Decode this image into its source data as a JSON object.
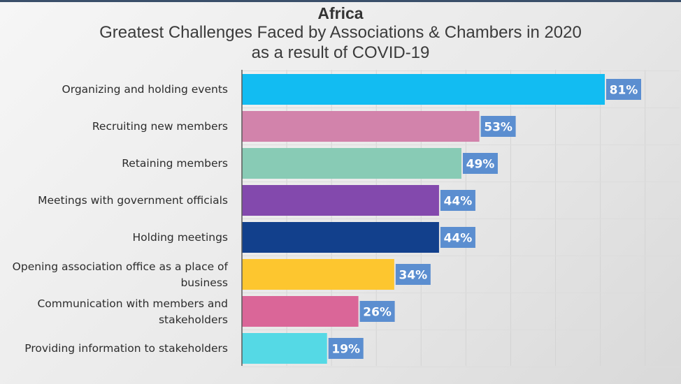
{
  "chart_data": {
    "type": "bar",
    "orientation": "horizontal",
    "title": "Africa",
    "subtitle": "Greatest Challenges Faced by Associations & Chambers in 2020 as a result of COVID-19",
    "subtitle_lines": [
      "Greatest Challenges Faced by Associations & Chambers in 2020",
      "as a result of COVID-19"
    ],
    "categories": [
      "Organizing and holding events",
      "Recruiting new members",
      "Retaining members",
      "Meetings with government officials",
      "Holding meetings",
      "Opening association office as a place of business",
      "Communication with members and stakeholders",
      "Providing information to stakeholders"
    ],
    "category_lines": [
      [
        "Organizing and holding events"
      ],
      [
        "Recruiting new members"
      ],
      [
        "Retaining members"
      ],
      [
        "Meetings with government officials"
      ],
      [
        "Holding meetings"
      ],
      [
        "Opening association office as a place of",
        "business"
      ],
      [
        "Communication with members and",
        "stakeholders"
      ],
      [
        "Providing information to stakeholders"
      ]
    ],
    "values": [
      81,
      53,
      49,
      44,
      44,
      34,
      26,
      19
    ],
    "data_labels": [
      "81%",
      "53%",
      "49%",
      "44%",
      "44%",
      "34%",
      "26%",
      "19%"
    ],
    "unit": "%",
    "xlim": [
      0,
      100
    ],
    "grid": true,
    "legend": "none",
    "colors": [
      "#12bcf2",
      "#d283ab",
      "#88cbb5",
      "#8349ad",
      "#12408c",
      "#fdc62f",
      "#da6698",
      "#55d9e5"
    ],
    "label_box_color": "#5b8ed0"
  }
}
